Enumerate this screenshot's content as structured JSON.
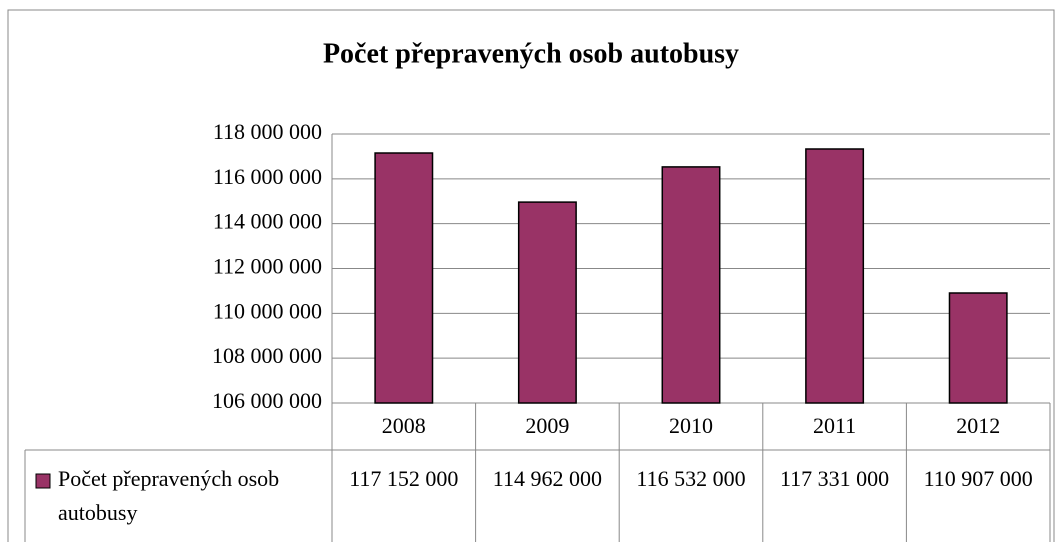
{
  "chart_data": {
    "type": "bar",
    "title": "Počet přepravených osob autobusy",
    "categories": [
      "2008",
      "2009",
      "2010",
      "2011",
      "2012"
    ],
    "series": [
      {
        "name": "Počet přepravených osob autobusy",
        "color": "#993366",
        "values": [
          117152000,
          114962000,
          116532000,
          117331000,
          110907000
        ],
        "value_labels": [
          "117 152 000",
          "114 962 000",
          "116 532 000",
          "117 331 000",
          "110 907 000"
        ]
      }
    ],
    "ylim": [
      106000000,
      118000000
    ],
    "yticks": [
      {
        "value": 106000000,
        "label": "106 000 000"
      },
      {
        "value": 108000000,
        "label": "108 000 000"
      },
      {
        "value": 110000000,
        "label": "110 000 000"
      },
      {
        "value": 112000000,
        "label": "112 000 000"
      },
      {
        "value": 114000000,
        "label": "114 000 000"
      },
      {
        "value": 116000000,
        "label": "116 000 000"
      },
      {
        "value": 118000000,
        "label": "118 000 000"
      }
    ],
    "grid": true
  }
}
